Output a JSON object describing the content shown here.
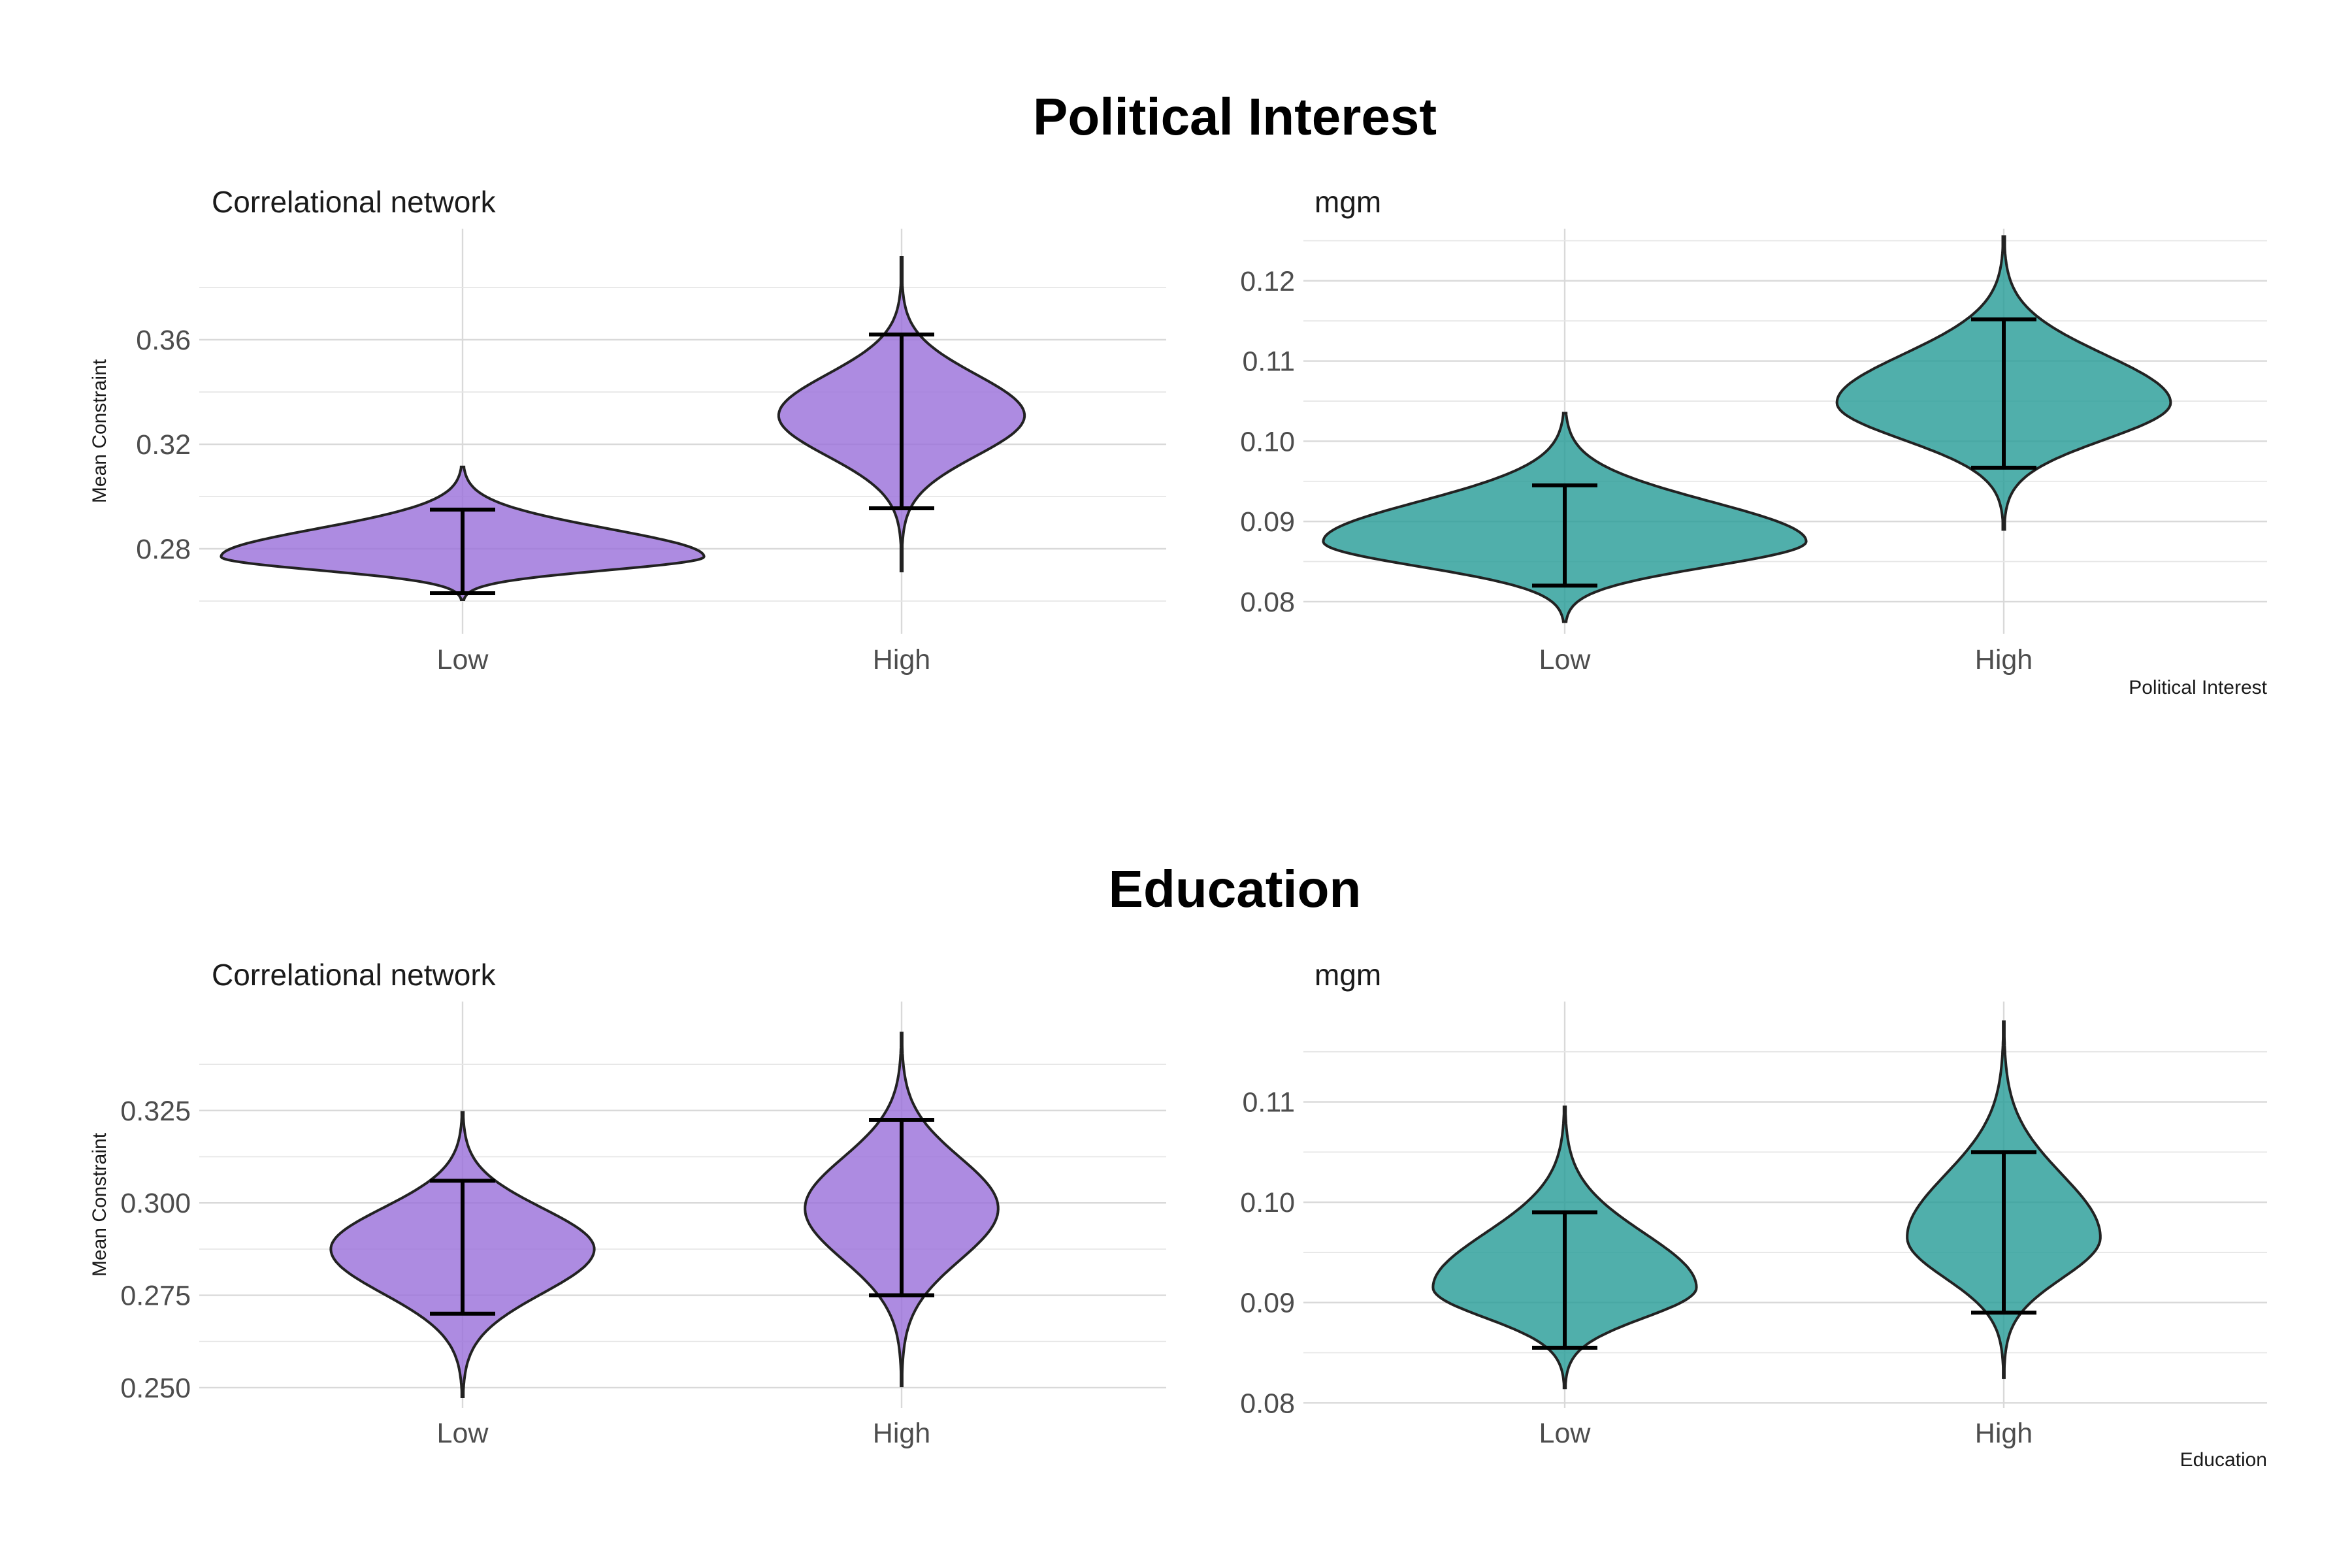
{
  "rows": [
    {
      "title": "Political Interest"
    },
    {
      "title": "Education"
    }
  ],
  "chart_data": [
    {
      "type": "violin",
      "title": "Correlational network",
      "row": "Political Interest",
      "xlabel": "",
      "ylabel": "Mean Constraint",
      "categories": [
        "Low",
        "High"
      ],
      "ylim": [
        0.2475,
        0.4025
      ],
      "yticks": [
        0.28,
        0.32,
        0.36
      ],
      "yticks_labels": [
        "0.28",
        "0.32",
        "0.36"
      ],
      "color": "#9b72db",
      "grid": true,
      "violins": [
        {
          "category": "Low",
          "center": 0.277,
          "min": 0.2605,
          "max": 0.3113,
          "q_low": 0.263,
          "q_high": 0.295,
          "halfwidth": 0.55,
          "shape": 0.62
        },
        {
          "category": "High",
          "center": 0.331,
          "min": 0.2715,
          "max": 0.3915,
          "q_low": 0.2955,
          "q_high": 0.362,
          "halfwidth": 0.28,
          "shape": 0.52
        }
      ]
    },
    {
      "type": "violin",
      "title": "mgm",
      "row": "Political Interest",
      "xlabel": "Political Interest",
      "ylabel": "",
      "categories": [
        "Low",
        "High"
      ],
      "ylim": [
        0.076,
        0.1265
      ],
      "yticks": [
        0.08,
        0.09,
        0.1,
        0.11,
        0.12
      ],
      "yticks_labels": [
        "0.08",
        "0.09",
        "0.10",
        "0.11",
        "0.12"
      ],
      "color": "#2a9d99",
      "grid": true,
      "violins": [
        {
          "category": "Low",
          "center": 0.0875,
          "min": 0.0775,
          "max": 0.1035,
          "q_low": 0.082,
          "q_high": 0.0945,
          "halfwidth": 0.55,
          "shape": 0.62
        },
        {
          "category": "High",
          "center": 0.1048,
          "min": 0.089,
          "max": 0.1255,
          "q_low": 0.0967,
          "q_high": 0.1152,
          "halfwidth": 0.38,
          "shape": 0.58
        }
      ]
    },
    {
      "type": "violin",
      "title": "Correlational network",
      "row": "Education",
      "xlabel": "",
      "ylabel": "Mean Constraint",
      "categories": [
        "Low",
        "High"
      ],
      "ylim": [
        0.2445,
        0.3545
      ],
      "yticks": [
        0.25,
        0.275,
        0.3,
        0.325
      ],
      "yticks_labels": [
        "0.250",
        "0.275",
        "0.300",
        "0.325"
      ],
      "color": "#9b72db",
      "grid": true,
      "violins": [
        {
          "category": "Low",
          "center": 0.2875,
          "min": 0.2475,
          "max": 0.3245,
          "q_low": 0.27,
          "q_high": 0.306,
          "halfwidth": 0.3,
          "shape": 0.6
        },
        {
          "category": "High",
          "center": 0.2985,
          "min": 0.2505,
          "max": 0.346,
          "q_low": 0.275,
          "q_high": 0.3225,
          "halfwidth": 0.22,
          "shape": 0.58
        }
      ]
    },
    {
      "type": "violin",
      "title": "mgm",
      "row": "Education",
      "xlabel": "Education",
      "ylabel": "",
      "categories": [
        "Low",
        "High"
      ],
      "ylim": [
        0.0795,
        0.12
      ],
      "yticks": [
        0.08,
        0.09,
        0.1,
        0.11
      ],
      "yticks_labels": [
        "0.08",
        "0.09",
        "0.10",
        "0.11"
      ],
      "color": "#2a9d99",
      "grid": true,
      "violins": [
        {
          "category": "Low",
          "center": 0.0915,
          "min": 0.0815,
          "max": 0.1095,
          "q_low": 0.0855,
          "q_high": 0.099,
          "halfwidth": 0.3,
          "shape": 0.6
        },
        {
          "category": "High",
          "center": 0.0965,
          "min": 0.0825,
          "max": 0.118,
          "q_low": 0.089,
          "q_high": 0.105,
          "halfwidth": 0.22,
          "shape": 0.58
        }
      ]
    }
  ]
}
